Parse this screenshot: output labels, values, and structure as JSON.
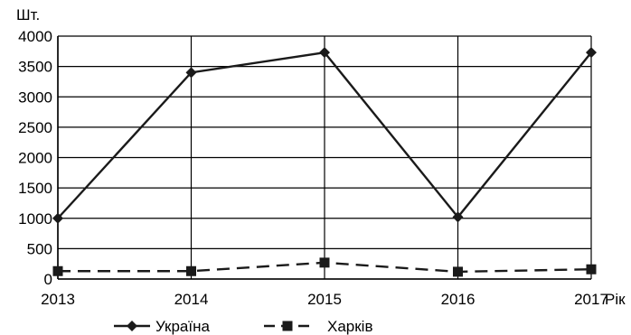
{
  "chart_data": {
    "type": "line",
    "title": "",
    "ylabel": "Шт.",
    "xlabel": "Рік",
    "categories": [
      "2013",
      "2014",
      "2015",
      "2016",
      "2017"
    ],
    "ylim": [
      0,
      4000
    ],
    "yticks": [
      "0",
      "500",
      "1000",
      "1500",
      "2000",
      "2500",
      "3000",
      "3500",
      "4000"
    ],
    "grid": true,
    "legend_position": "bottom",
    "series": [
      {
        "name": "Україна",
        "values": [
          1000,
          3400,
          3730,
          1020,
          3730
        ],
        "marker": "diamond",
        "line": "solid",
        "color": "#1a1a1a"
      },
      {
        "name": "Харків",
        "values": [
          130,
          130,
          270,
          120,
          160
        ],
        "marker": "square",
        "line": "dashed",
        "color": "#1a1a1a"
      }
    ]
  }
}
